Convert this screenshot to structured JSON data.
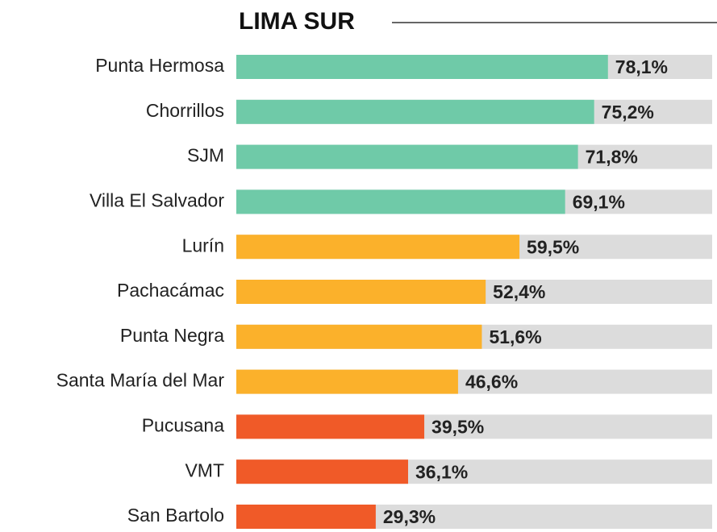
{
  "chart_data": {
    "type": "hbar",
    "title": "LIMA SUR",
    "categories": [
      "Punta Hermosa",
      "Chorrillos",
      "SJM",
      "Villa El Salvador",
      "Lurín",
      "Pachacámac",
      "Punta Negra",
      "Santa María del Mar",
      "Pucusana",
      "VMT",
      "San Bartolo"
    ],
    "values": [
      78.1,
      75.2,
      71.8,
      69.1,
      59.5,
      52.4,
      51.6,
      46.6,
      39.5,
      36.1,
      29.3
    ],
    "value_labels": [
      "78,1%",
      "75,2%",
      "71,8%",
      "69,1%",
      "59,5%",
      "52,4%",
      "51,6%",
      "46,6%",
      "39,5%",
      "36,1%",
      "29,3%"
    ],
    "colors": [
      "#6fcaa8",
      "#6fcaa8",
      "#6fcaa8",
      "#6fcaa8",
      "#fbb12b",
      "#fbb12b",
      "#fbb12b",
      "#fbb12b",
      "#f05a28",
      "#f05a28",
      "#f05a28"
    ],
    "track_color": "#dcdcdc",
    "xlim": [
      0,
      100
    ]
  }
}
